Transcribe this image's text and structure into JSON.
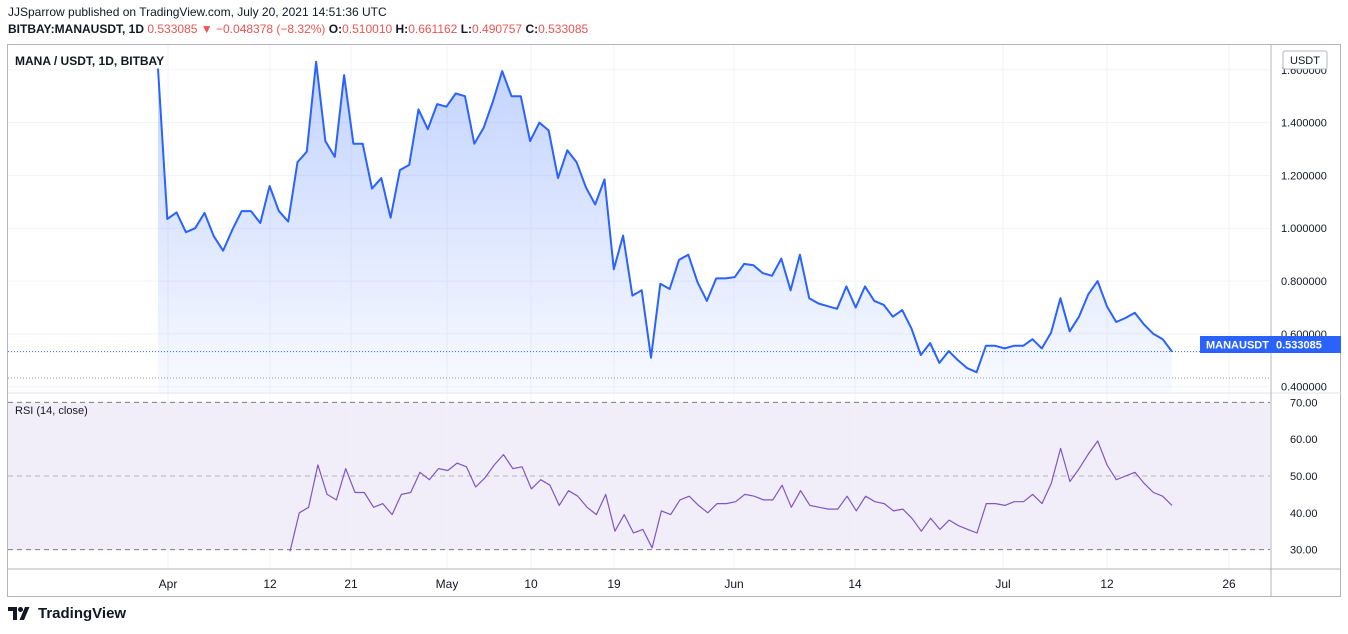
{
  "header": {
    "publisher": "JJSparrow published on TradingView.com, July 20, 2021 14:51:36 UTC",
    "symbol": "BITBAY:MANAUSDT, 1D",
    "last": "0.533085",
    "change_arrow": "▼",
    "change": "−0.048378 (−8.32%)",
    "o_label": "O:",
    "o_value": "0.510010",
    "h_label": "H:",
    "h_value": "0.661162",
    "l_label": "L:",
    "l_value": "0.490757",
    "c_label": "C:",
    "c_value": "0.533085"
  },
  "colors": {
    "line": "#2962ff",
    "rsi": "#7e57c2",
    "negative": "#ef5350",
    "badge": "#2962ff"
  },
  "main_pane": {
    "legend": "MANA / USDT, 1D, BITBAY",
    "currency": "USDT",
    "price_badge_label": "MANAUSDT",
    "price_badge_value": "0.533085"
  },
  "rsi_pane": {
    "legend": "RSI (14, close)"
  },
  "footer": {
    "brand": "TradingView",
    "logo_icon": "tradingview-logo-icon"
  },
  "chart_data": [
    {
      "type": "area",
      "x_ticks": [
        "Apr",
        "12",
        "21",
        "May",
        "10",
        "19",
        "Jun",
        "14",
        "Jul",
        "12",
        "26"
      ],
      "y_ticks": [
        "1.600000",
        "1.400000",
        "1.200000",
        "1.000000",
        "0.800000",
        "0.600000",
        "0.400000"
      ],
      "ylim": [
        0.38,
        1.69
      ],
      "grid": true,
      "y_axis_side": "right",
      "series": [
        {
          "values": [
            1.605,
            1.035,
            1.06,
            0.985,
            1.0,
            1.058,
            0.97,
            0.915,
            0.995,
            1.065,
            1.065,
            1.02,
            1.16,
            1.065,
            1.025,
            1.25,
            1.29,
            1.63,
            1.33,
            1.27,
            1.58,
            1.32,
            1.32,
            1.15,
            1.19,
            1.04,
            1.22,
            1.24,
            1.45,
            1.375,
            1.47,
            1.46,
            1.51,
            1.5,
            1.32,
            1.38,
            1.48,
            1.595,
            1.5,
            1.5,
            1.33,
            1.4,
            1.37,
            1.19,
            1.295,
            1.25,
            1.155,
            1.09,
            1.185,
            0.845,
            0.972,
            0.745,
            0.765,
            0.51,
            0.79,
            0.77,
            0.88,
            0.9,
            0.795,
            0.725,
            0.81,
            0.81,
            0.815,
            0.865,
            0.86,
            0.83,
            0.82,
            0.885,
            0.765,
            0.9,
            0.735,
            0.715,
            0.705,
            0.695,
            0.78,
            0.7,
            0.78,
            0.725,
            0.71,
            0.665,
            0.69,
            0.62,
            0.52,
            0.565,
            0.49,
            0.535,
            0.5,
            0.47,
            0.455,
            0.555,
            0.555,
            0.545,
            0.555,
            0.555,
            0.58,
            0.545,
            0.605,
            0.735,
            0.61,
            0.665,
            0.75,
            0.8,
            0.705,
            0.645,
            0.66,
            0.68,
            0.635,
            0.6,
            0.58,
            0.533
          ]
        }
      ]
    },
    {
      "type": "line",
      "y_ticks": [
        "70.00",
        "60.00",
        "50.00",
        "40.00",
        "30.00"
      ],
      "ylim": [
        25,
        72
      ],
      "bands": [
        70,
        30
      ],
      "mid": 50,
      "series": [
        {
          "values": [
            29.5,
            40,
            41.5,
            53,
            45,
            43.5,
            52,
            45.5,
            45.5,
            41.5,
            42.5,
            39.5,
            45,
            45.5,
            51,
            49,
            52,
            51.5,
            53.5,
            52.5,
            47,
            49.5,
            53,
            55.8,
            52,
            52.5,
            46.5,
            49,
            47.5,
            42,
            46,
            44.5,
            41.5,
            39.5,
            45,
            35,
            39.5,
            34.5,
            35.5,
            30.5,
            40.5,
            39.5,
            43.5,
            44.5,
            42,
            40,
            42.5,
            42.5,
            43,
            45,
            44.5,
            43.5,
            43.5,
            47.5,
            41.5,
            46,
            42,
            41.5,
            41,
            41,
            44.5,
            40.5,
            44.5,
            43,
            42.5,
            40.5,
            41,
            38.5,
            35,
            38.5,
            35.5,
            38,
            36.5,
            35.5,
            34.5,
            42.5,
            42.5,
            42,
            43,
            43,
            45,
            42.5,
            48,
            57.5,
            48.5,
            52,
            56,
            59.5,
            53,
            49,
            50,
            51,
            48,
            45.5,
            44.5,
            42
          ]
        }
      ]
    }
  ]
}
